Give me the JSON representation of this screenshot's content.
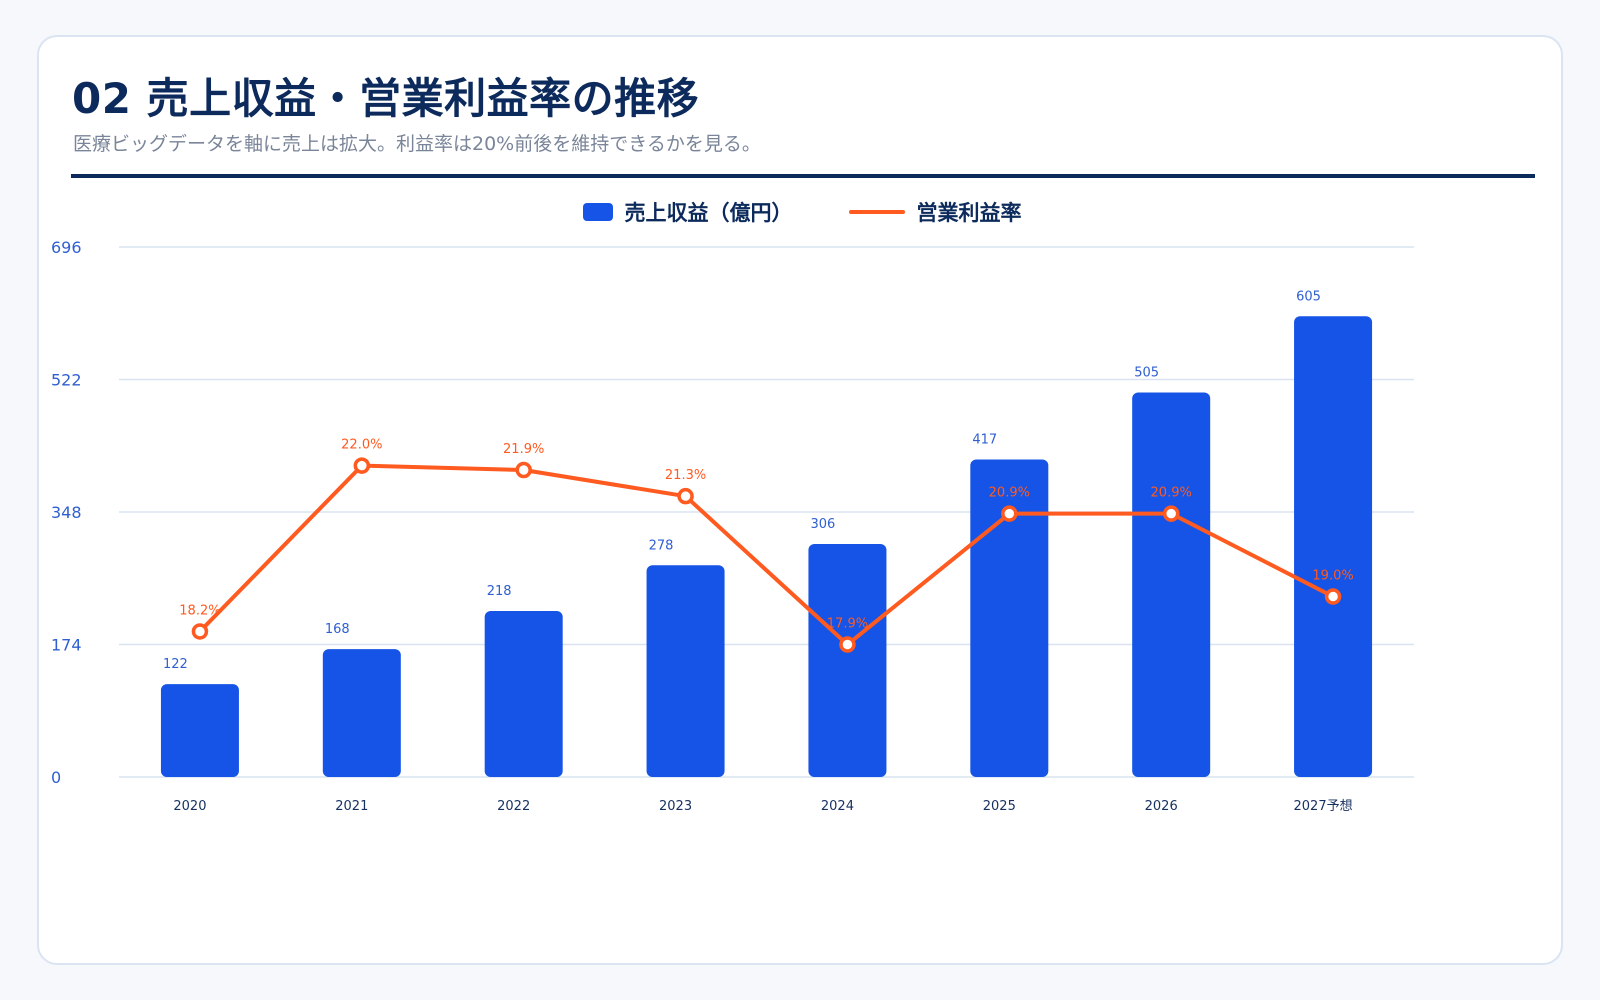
{
  "header": {
    "title": "02 売上収益・営業利益率の推移",
    "subtitle": "医療ビッグデータを軸に売上は拡大。利益率は20%前後を維持できるかを見る。"
  },
  "legend": {
    "revenue_label": "売上収益（億円）",
    "margin_label": "営業利益率"
  },
  "colors": {
    "bar": "#1554e6",
    "line": "#ff5a1f",
    "axis_text": "#2f5fd0",
    "grid": "#d9e3f1",
    "tick_text": "#16305f"
  },
  "chart_data": {
    "type": "bar",
    "categories": [
      "2020",
      "2021",
      "2022",
      "2023",
      "2024",
      "2025",
      "2026",
      "2027予想"
    ],
    "y_ticks": [
      0,
      174,
      348,
      522,
      696
    ],
    "ylim": [
      0,
      696
    ],
    "series": [
      {
        "name": "売上収益（億円）",
        "type": "bar",
        "values": [
          122,
          168,
          218,
          278,
          306,
          417,
          505,
          605
        ],
        "labels": [
          "122",
          "168",
          "218",
          "278",
          "306",
          "417",
          "505",
          "605"
        ]
      },
      {
        "name": "営業利益率",
        "type": "line",
        "values": [
          18.2,
          22.0,
          21.9,
          21.3,
          17.9,
          20.9,
          20.9,
          19.0
        ],
        "labels": [
          "18.2%",
          "22.0%",
          "21.9%",
          "21.3%",
          "17.9%",
          "20.9%",
          "20.9%",
          "19.0%"
        ]
      }
    ],
    "grid": true,
    "legend_position": "top-center"
  }
}
